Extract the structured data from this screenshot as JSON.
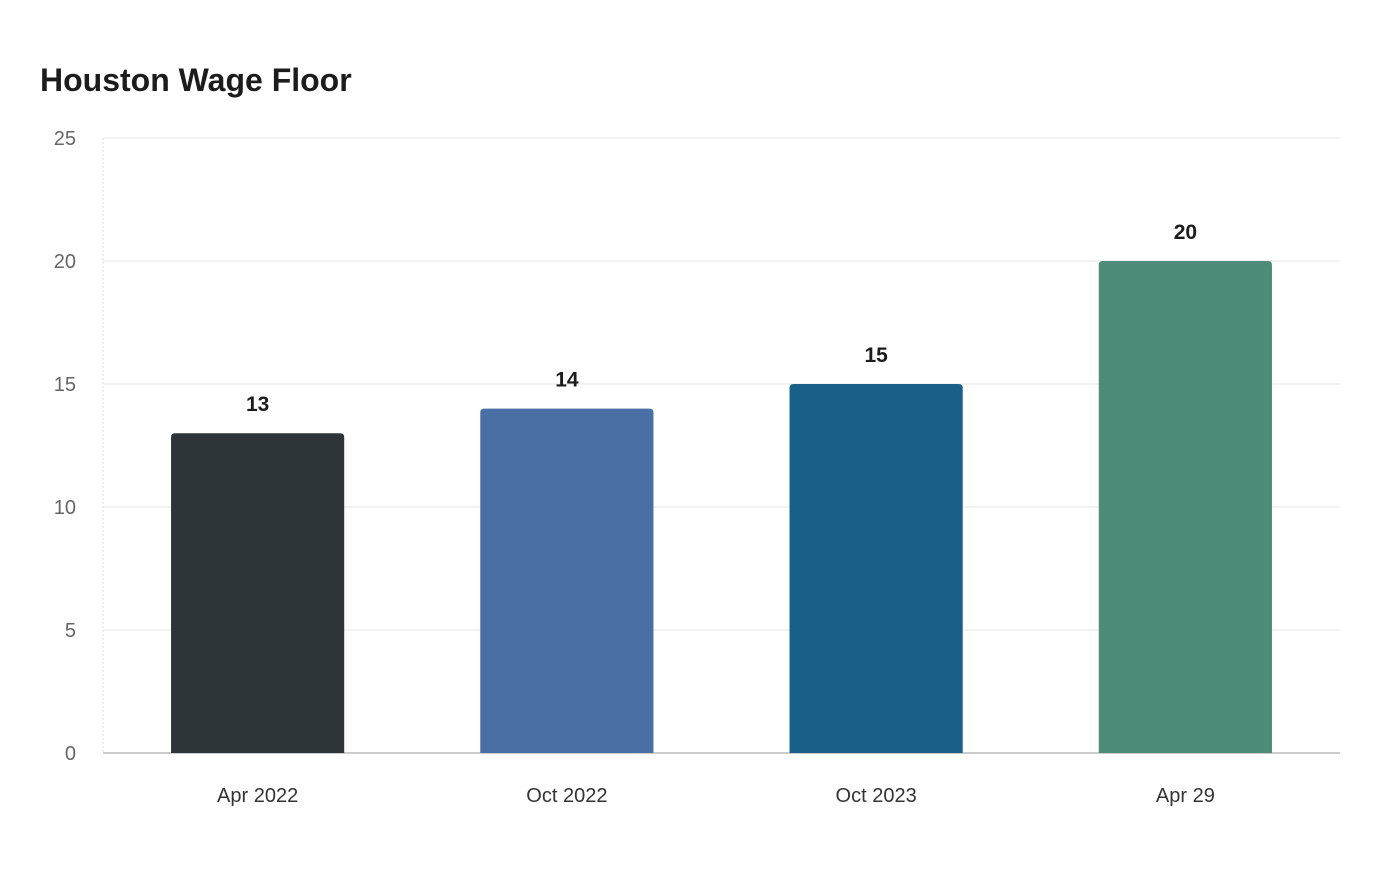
{
  "chart_data": {
    "type": "bar",
    "title": "Houston Wage Floor",
    "xlabel": "",
    "ylabel": "",
    "categories": [
      "Apr 2022",
      "Oct 2022",
      "Oct 2023",
      "Apr 29"
    ],
    "values": [
      13,
      14,
      15,
      20
    ],
    "colors": [
      "#2d3538",
      "#4a6fa5",
      "#186087",
      "#4e8c7a"
    ],
    "ylim": [
      0,
      25
    ],
    "yticks": [
      0,
      5,
      10,
      15,
      20,
      25
    ],
    "grid": true,
    "legend": "none"
  }
}
